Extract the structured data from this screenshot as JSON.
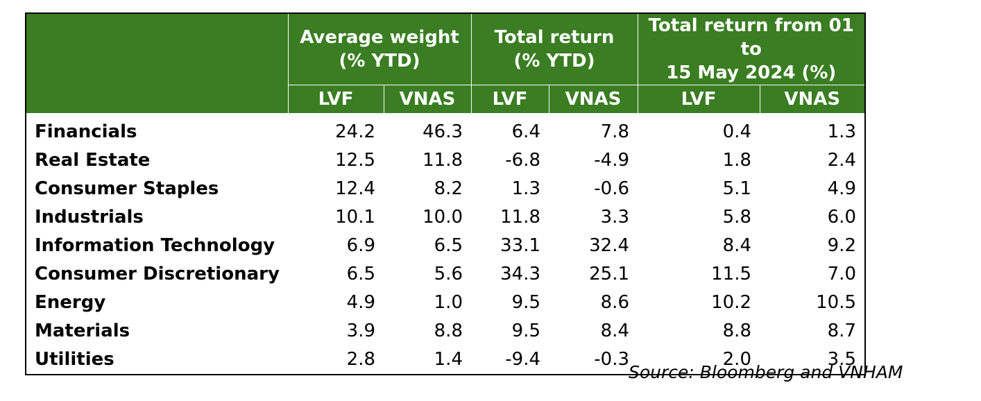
{
  "table": {
    "groups": [
      {
        "line1": "Average weight",
        "line2": "(% YTD)"
      },
      {
        "line1": "Total return",
        "line2": "(% YTD)"
      },
      {
        "line1": "Total return from 01 to",
        "line2": "15 May 2024 (%)"
      }
    ],
    "subheaders": [
      "LVF",
      "VNAS",
      "LVF",
      "VNAS",
      "LVF",
      "VNAS"
    ],
    "rows": [
      {
        "sector": "Financials",
        "values": [
          "24.2",
          "46.3",
          "6.4",
          "7.8",
          "0.4",
          "1.3"
        ]
      },
      {
        "sector": "Real Estate",
        "values": [
          "12.5",
          "11.8",
          "-6.8",
          "-4.9",
          "1.8",
          "2.4"
        ]
      },
      {
        "sector": "Consumer Staples",
        "values": [
          "12.4",
          "8.2",
          "1.3",
          "-0.6",
          "5.1",
          "4.9"
        ]
      },
      {
        "sector": "Industrials",
        "values": [
          "10.1",
          "10.0",
          "11.8",
          "3.3",
          "5.8",
          "6.0"
        ]
      },
      {
        "sector": "Information Technology",
        "values": [
          "6.9",
          "6.5",
          "33.1",
          "32.4",
          "8.4",
          "9.2"
        ]
      },
      {
        "sector": "Consumer Discretionary",
        "values": [
          "6.5",
          "5.6",
          "34.3",
          "25.1",
          "11.5",
          "7.0"
        ]
      },
      {
        "sector": "Energy",
        "values": [
          "4.9",
          "1.0",
          "9.5",
          "8.6",
          "10.2",
          "10.5"
        ]
      },
      {
        "sector": "Materials",
        "values": [
          "3.9",
          "8.8",
          "9.5",
          "8.4",
          "8.8",
          "8.7"
        ]
      },
      {
        "sector": "Utilities",
        "values": [
          "2.8",
          "1.4",
          "-9.4",
          "-0.3",
          "2.0",
          "3.5"
        ]
      }
    ]
  },
  "source": "Source: Bloomberg and VNHAM",
  "colors": {
    "header_bg": "#3a7d22",
    "header_text": "#ffffff",
    "border": "#000000"
  }
}
